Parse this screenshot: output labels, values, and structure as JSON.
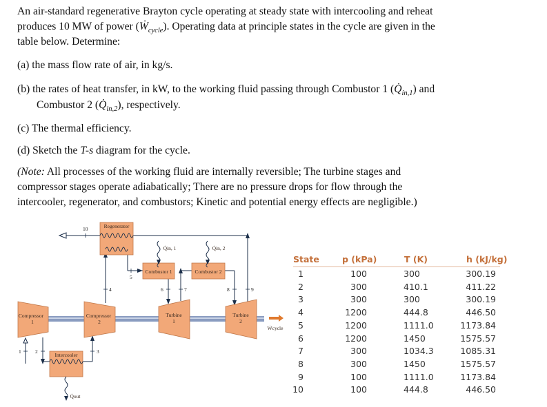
{
  "problem": {
    "intro_1": "An air-standard regenerative Brayton cycle operating at steady state with intercooling and reheat",
    "intro_2a": "produces 10 MW of power (",
    "intro_2_sym": "Ẇ",
    "intro_2_sub": "cycle",
    "intro_2b": "). Operating data at principle states in the cycle are given in the",
    "intro_3": "table below. Determine:",
    "a": "(a) the mass flow rate of air, in kg/s.",
    "b_1a": "(b) the rates of heat transfer, in kW, to the working fluid passing through Combustor 1 (",
    "b_1_sym": "Q̇",
    "b_1_sub": "in,1",
    "b_1b": ") and",
    "b_2a": "Combustor 2 (",
    "b_2_sym": "Q̇",
    "b_2_sub": "in,2",
    "b_2b": "), respectively.",
    "c": "(c) The thermal efficiency.",
    "d_a": "(d) Sketch the ",
    "d_i": "T-s",
    "d_b": " diagram for the cycle.",
    "note_1a": "(Note:",
    "note_1b": " All processes of the working fluid are internally reversible; The turbine stages and",
    "note_2": "compressor stages operate adiabatically; There are no pressure drops for flow through the",
    "note_3": "intercooler, regenerator, and combustors; Kinetic and potential energy effects are negligible.)"
  },
  "diagram": {
    "regenerator": "Regenerator",
    "combustor1": "Combustor 1",
    "combustor2": "Combustor 2",
    "compressor1": [
      "Compressor",
      "1"
    ],
    "compressor2": [
      "Compressor",
      "2"
    ],
    "turbine1": [
      "Turbine",
      "1"
    ],
    "turbine2": [
      "Turbine",
      "2"
    ],
    "intercooler": "Intercooler",
    "q_in1": "Q̇in, 1",
    "q_in2": "Q̇in, 2",
    "q_out": "Q̇out",
    "w_cycle": "Ẇcycle",
    "states": [
      "1",
      "2",
      "3",
      "4",
      "5",
      "6",
      "7",
      "8",
      "9",
      "10"
    ],
    "colors": {
      "component": "#f2a878",
      "shaft": "#8a9cc0",
      "line": "#1c2f4a",
      "work_arrow": "#e07a2e"
    }
  },
  "table": {
    "headers": [
      "State",
      "p (kPa)",
      "T (K)",
      "h (kJ/kg)"
    ],
    "rows": [
      [
        "1",
        "100",
        "300",
        "300.19"
      ],
      [
        "2",
        "300",
        "410.1",
        "411.22"
      ],
      [
        "3",
        "300",
        "300",
        "300.19"
      ],
      [
        "4",
        "1200",
        "444.8",
        "446.50"
      ],
      [
        "5",
        "1200",
        "1111.0",
        "1173.84"
      ],
      [
        "6",
        "1200",
        "1450",
        "1575.57"
      ],
      [
        "7",
        "300",
        "1034.3",
        "1085.31"
      ],
      [
        "8",
        "300",
        "1450",
        "1575.57"
      ],
      [
        "9",
        "100",
        "1111.0",
        "1173.84"
      ],
      [
        "10",
        "100",
        "444.8",
        "446.50"
      ]
    ],
    "header_color": "#c4703a"
  }
}
